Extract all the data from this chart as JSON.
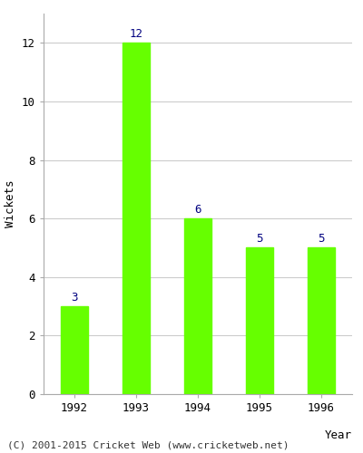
{
  "years": [
    "1992",
    "1993",
    "1994",
    "1995",
    "1996"
  ],
  "values": [
    3,
    12,
    6,
    5,
    5
  ],
  "bar_color": "#66ff00",
  "bar_edge_color": "#66ff00",
  "label_color": "#000080",
  "xlabel": "Year",
  "ylabel": "Wickets",
  "ylim": [
    0,
    13
  ],
  "yticks": [
    0,
    2,
    4,
    6,
    8,
    10,
    12
  ],
  "grid_color": "#cccccc",
  "background_color": "#ffffff",
  "label_fontsize": 9,
  "axis_label_fontsize": 9,
  "tick_fontsize": 9,
  "footer_text": "(C) 2001-2015 Cricket Web (www.cricketweb.net)",
  "footer_fontsize": 8
}
